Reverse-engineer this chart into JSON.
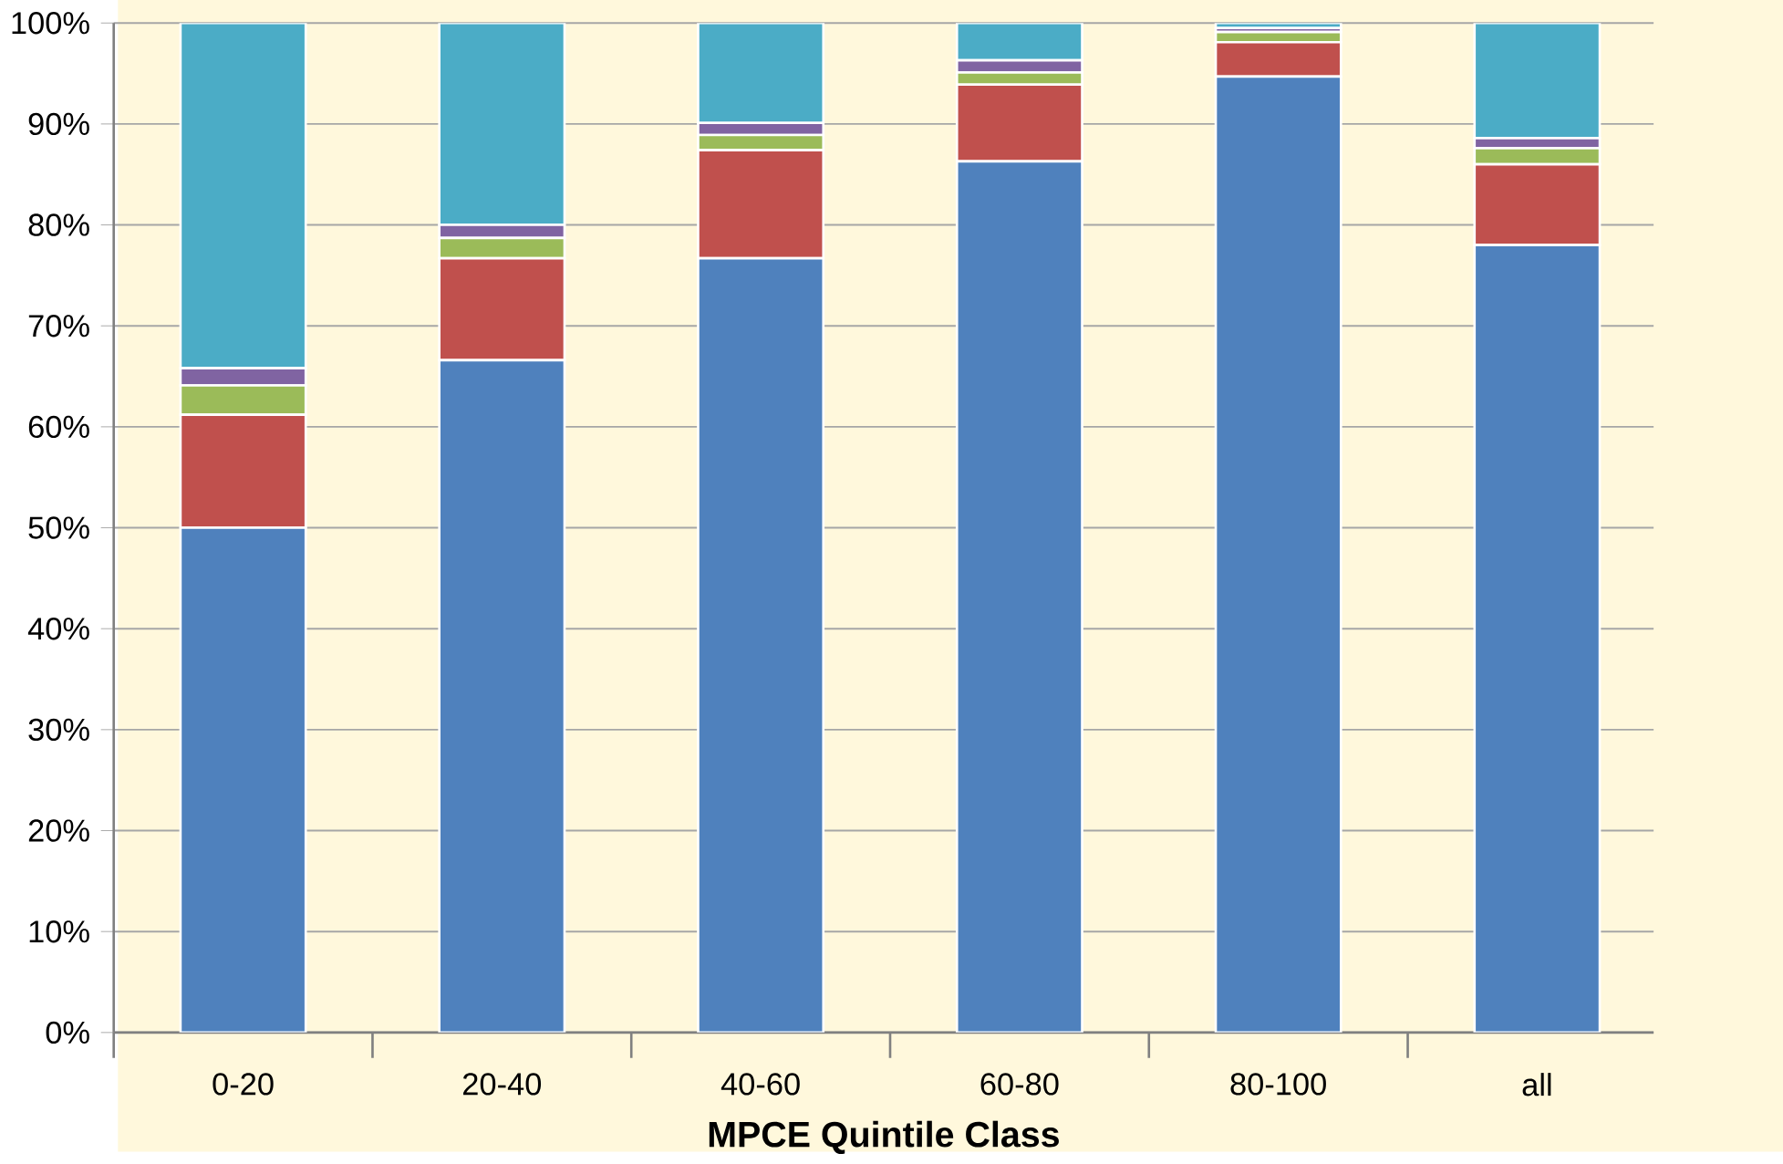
{
  "chart_data": {
    "type": "bar",
    "stacked": true,
    "xlabel": "MPCE Quintile Class",
    "categories": [
      "0-20",
      "20-40",
      "40-60",
      "60-80",
      "80-100",
      "all"
    ],
    "series": [
      {
        "color": "#4f81bd",
        "values": [
          50.0,
          66.6,
          76.7,
          86.3,
          94.7,
          78.0
        ]
      },
      {
        "color": "#c0504d",
        "values": [
          11.2,
          10.1,
          10.7,
          7.6,
          3.4,
          8.0
        ]
      },
      {
        "color": "#9bbb59",
        "values": [
          2.9,
          2.0,
          1.5,
          1.2,
          1.0,
          1.6
        ]
      },
      {
        "color": "#8064a2",
        "values": [
          1.7,
          1.3,
          1.2,
          1.2,
          0.4,
          1.0
        ]
      },
      {
        "color": "#4bacc6",
        "values": [
          34.2,
          20.0,
          9.9,
          3.7,
          0.5,
          11.4
        ]
      }
    ],
    "ylim": [
      0,
      100
    ],
    "yticks": [
      {
        "value": 0,
        "label": "0%"
      },
      {
        "value": 10,
        "label": "10%"
      },
      {
        "value": 20,
        "label": "20%"
      },
      {
        "value": 30,
        "label": "30%"
      },
      {
        "value": 40,
        "label": "40%"
      },
      {
        "value": 50,
        "label": "50%"
      },
      {
        "value": 60,
        "label": "60%"
      },
      {
        "value": 70,
        "label": "70%"
      },
      {
        "value": 80,
        "label": "80%"
      },
      {
        "value": 90,
        "label": "90%"
      },
      {
        "value": 100,
        "label": "100%"
      }
    ],
    "grid": "y"
  }
}
